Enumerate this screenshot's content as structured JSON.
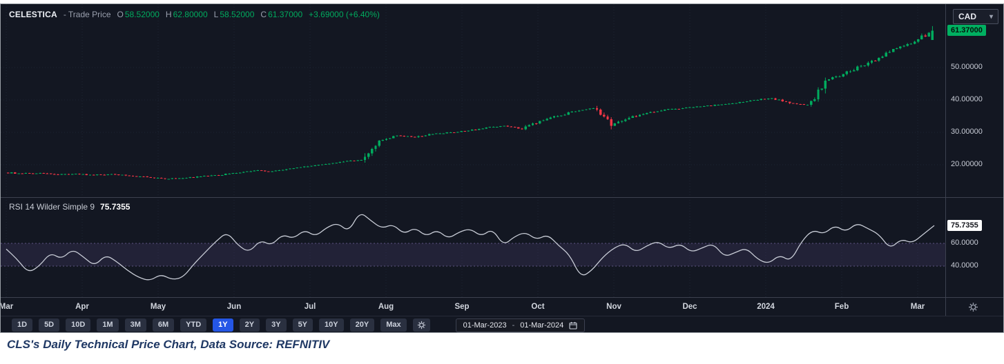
{
  "header": {
    "symbol": "CELESTICA",
    "series": "- Trade Price",
    "fields": [
      {
        "label": "O",
        "value": "58.52000"
      },
      {
        "label": "H",
        "value": "62.80000"
      },
      {
        "label": "L",
        "value": "58.52000"
      },
      {
        "label": "C",
        "value": "61.37000"
      }
    ],
    "change": "+3.69000 (+6.40%)",
    "currency": "CAD"
  },
  "price_pane": {
    "last_price_label": "61.37000",
    "axis_ticks": [
      {
        "label": "50.00000",
        "value": 50
      },
      {
        "label": "40.00000",
        "value": 40
      },
      {
        "label": "30.00000",
        "value": 30
      },
      {
        "label": "20.00000",
        "value": 20
      }
    ]
  },
  "rsi_pane": {
    "legend": "RSI 14 Wilder Simple 9",
    "legend_value": "75.7355",
    "axis_chip": "75.7355",
    "axis_ticks": [
      {
        "label": "60.0000",
        "value": 60
      },
      {
        "label": "40.0000",
        "value": 40
      }
    ]
  },
  "time_axis": {
    "labels": [
      "Mar",
      "Apr",
      "May",
      "Jun",
      "Jul",
      "Aug",
      "Sep",
      "Oct",
      "Nov",
      "Dec",
      "2024",
      "Feb",
      "Mar"
    ]
  },
  "toolbar": {
    "ranges": [
      "1D",
      "5D",
      "10D",
      "1M",
      "3M",
      "6M",
      "YTD",
      "1Y",
      "2Y",
      "3Y",
      "5Y",
      "10Y",
      "20Y",
      "Max"
    ],
    "selected": "1Y",
    "date_from": "01-Mar-2023",
    "date_separator": "-",
    "date_to": "01-Mar-2024"
  },
  "caption": "CLS's Daily Technical Price Chart, Data Source: REFNITIV",
  "colors": {
    "up": "#00ab5e",
    "down": "#f23645",
    "selected_range": "#2456e6",
    "last_price_chip_bg": "#00b061",
    "background": "#131722"
  },
  "chart_data": [
    {
      "type": "candlestick",
      "title": "CELESTICA - Trade Price (CAD, daily)",
      "x_range": [
        "01-Mar-2023",
        "01-Mar-2024"
      ],
      "y_ticks": [
        50,
        40,
        30,
        20
      ],
      "ylim": [
        14,
        64
      ],
      "last_ohlc": {
        "open": 58.52,
        "high": 62.8,
        "low": 58.52,
        "close": 61.37
      },
      "weekly_closes": [
        17.6,
        17.3,
        17.5,
        17.0,
        17.2,
        16.8,
        17.1,
        16.6,
        16.2,
        15.6,
        15.9,
        16.4,
        16.8,
        17.5,
        18.2,
        18.0,
        18.8,
        19.5,
        20.2,
        21.0,
        21.5,
        27.5,
        29.0,
        28.5,
        29.5,
        30.0,
        30.5,
        31.5,
        32.0,
        31.0,
        33.5,
        35.0,
        36.5,
        37.5,
        32.0,
        34.5,
        36.0,
        37.0,
        37.5,
        38.0,
        38.5,
        39.0,
        40.0,
        40.5,
        39.0,
        38.5,
        46.0,
        48.0,
        50.5,
        53.0,
        56.0,
        58.0,
        61.37
      ]
    },
    {
      "type": "line",
      "title": "RSI 14 Wilder Simple 9",
      "last_value": 75.7355,
      "y_ticks": [
        60,
        40
      ],
      "band": [
        40,
        60
      ],
      "ylim": [
        15,
        95
      ],
      "values": [
        55,
        46,
        34,
        40,
        52,
        46,
        55,
        48,
        40,
        50,
        44,
        36,
        30,
        27,
        33,
        28,
        30,
        42,
        52,
        62,
        70,
        58,
        52,
        63,
        58,
        68,
        64,
        72,
        66,
        74,
        78,
        70,
        88,
        80,
        73,
        77,
        68,
        74,
        66,
        72,
        64,
        70,
        73,
        66,
        73,
        58,
        66,
        70,
        63,
        68,
        58,
        50,
        30,
        36,
        48,
        56,
        60,
        52,
        58,
        62,
        55,
        60,
        52,
        56,
        60,
        48,
        52,
        56,
        46,
        42,
        50,
        44,
        62,
        72,
        68,
        76,
        70,
        78,
        73,
        68,
        55,
        64,
        60,
        68,
        75.7
      ]
    }
  ]
}
